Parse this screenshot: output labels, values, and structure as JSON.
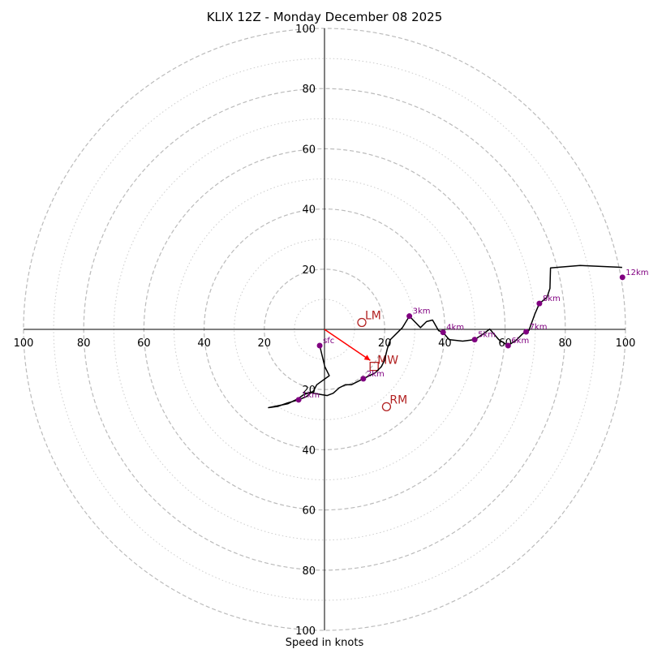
{
  "chart_data": {
    "type": "hodograph",
    "title": "KLIX 12Z - Monday December 08 2025",
    "xlabel": "Speed in knots",
    "units": "knots",
    "max_speed": 100,
    "major_rings": [
      20,
      40,
      60,
      80,
      100
    ],
    "minor_rings": [
      10,
      30,
      50,
      70,
      90
    ],
    "tick_labels": {
      "right": [
        "20",
        "40",
        "60",
        "80",
        "100"
      ],
      "left": [
        "20",
        "40",
        "60",
        "80",
        "100"
      ],
      "up": [
        "20",
        "40",
        "60",
        "80",
        "100"
      ],
      "down": [
        "20",
        "40",
        "60",
        "80",
        "100"
      ]
    },
    "trace": {
      "color": "#000000",
      "points": [
        [
          -1.6,
          -5.4
        ],
        [
          0.1,
          -12.4
        ],
        [
          1.6,
          -15.4
        ],
        [
          -2.6,
          -18.4
        ],
        [
          -3.6,
          -20.4
        ],
        [
          -6.1,
          -22.4
        ],
        [
          -8.6,
          -23.4
        ],
        [
          -12.1,
          -24.4
        ],
        [
          -15.6,
          -25.6
        ],
        [
          -18.6,
          -26.0
        ],
        [
          -12.1,
          -24.7
        ],
        [
          -8.6,
          -22.9
        ],
        [
          -7.1,
          -21.8
        ],
        [
          -4.5,
          -20.8
        ],
        [
          -3.6,
          -21.2
        ],
        [
          0.9,
          -22.0
        ],
        [
          2.9,
          -21.2
        ],
        [
          4.9,
          -19.4
        ],
        [
          6.9,
          -18.4
        ],
        [
          8.9,
          -18.4
        ],
        [
          12.9,
          -16.4
        ],
        [
          16.9,
          -14.4
        ],
        [
          18.9,
          -12.4
        ],
        [
          19.9,
          -10.4
        ],
        [
          20.9,
          -6.4
        ],
        [
          21.9,
          -3.4
        ],
        [
          23.9,
          -1.4
        ],
        [
          25.9,
          0.6
        ],
        [
          28.2,
          4.4
        ],
        [
          31.9,
          0.6
        ],
        [
          33.9,
          2.6
        ],
        [
          35.9,
          3.1
        ],
        [
          37.9,
          -0.4
        ],
        [
          39.4,
          -1.0
        ],
        [
          41.4,
          -3.4
        ],
        [
          45.9,
          -3.9
        ],
        [
          49.9,
          -3.4
        ],
        [
          52.9,
          -1.4
        ],
        [
          54.9,
          0.1
        ],
        [
          57.9,
          -3.4
        ],
        [
          61.0,
          -5.4
        ],
        [
          63.9,
          -3.4
        ],
        [
          65.9,
          -1.4
        ],
        [
          67.9,
          -0.4
        ],
        [
          69.9,
          5.1
        ],
        [
          71.4,
          8.6
        ],
        [
          73.9,
          10.6
        ],
        [
          74.9,
          13.6
        ],
        [
          75.1,
          20.4
        ],
        [
          84.9,
          21.2
        ],
        [
          98.9,
          20.6
        ]
      ]
    },
    "height_markers": [
      {
        "label": "sfc",
        "u": -1.6,
        "v": -5.4
      },
      {
        "label": "1km",
        "u": -8.6,
        "v": -23.4
      },
      {
        "label": "2km",
        "u": 12.9,
        "v": -16.4
      },
      {
        "label": "3km",
        "u": 28.2,
        "v": 4.4
      },
      {
        "label": "4km",
        "u": 39.4,
        "v": -1.0
      },
      {
        "label": "5km",
        "u": 49.9,
        "v": -3.4
      },
      {
        "label": "6km",
        "u": 61.0,
        "v": -5.4
      },
      {
        "label": "7km",
        "u": 67.0,
        "v": -0.8
      },
      {
        "label": "8km",
        "u": 71.4,
        "v": 8.6
      },
      {
        "label": "12km",
        "u": 99.0,
        "v": 17.3
      }
    ],
    "storm_motion": {
      "color": "#b22222",
      "bunkers_left": {
        "label": "LM",
        "u": 12.4,
        "v": 2.3
      },
      "bunkers_right": {
        "label": "RM",
        "u": 20.6,
        "v": -25.7
      },
      "mean_wind": {
        "label": "MW",
        "u": 16.5,
        "v": -12.3
      },
      "mean_wind_marker": "square",
      "shear_vector": {
        "from": [
          0,
          0
        ],
        "to": [
          15.2,
          -10.3
        ],
        "color": "#ff0000"
      }
    }
  }
}
